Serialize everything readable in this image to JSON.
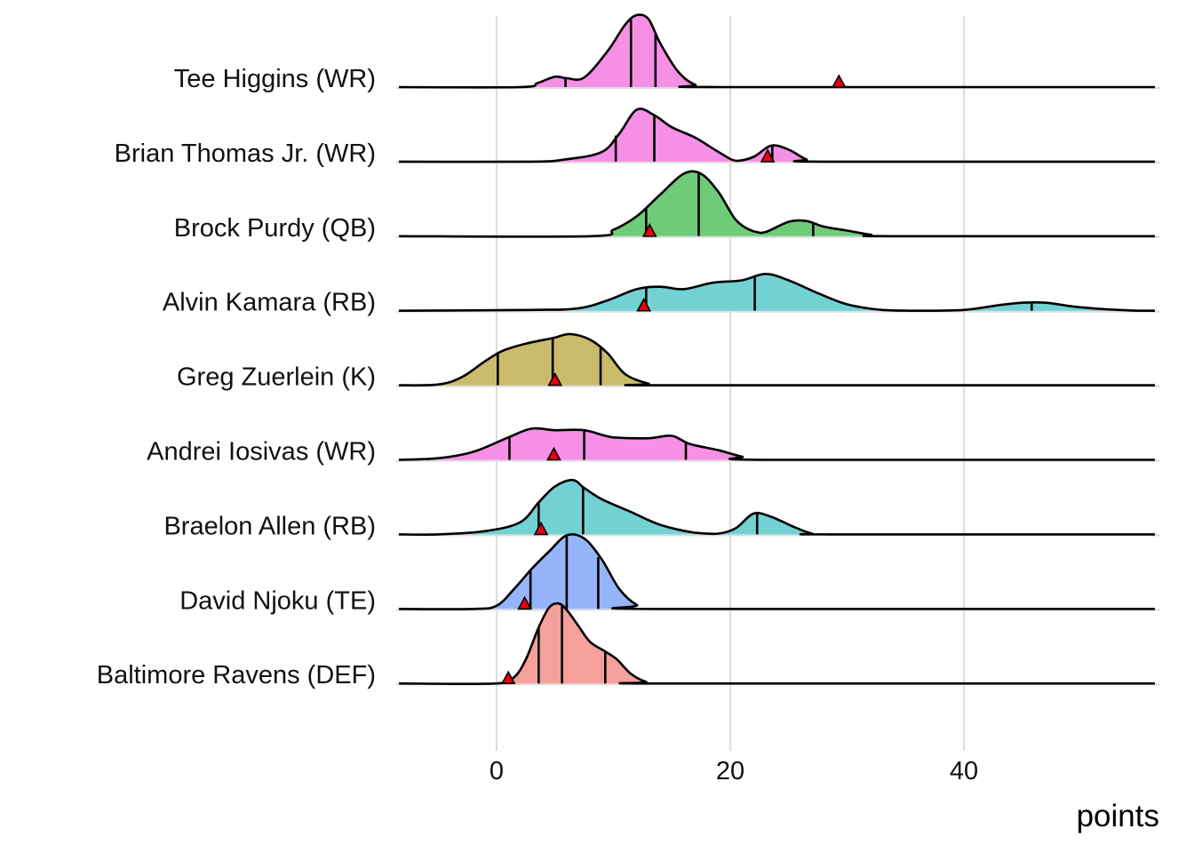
{
  "chart_data": {
    "type": "ridgeline",
    "title": "",
    "xlabel": "points",
    "ylabel": "",
    "xlim": [
      -8.4,
      56.5
    ],
    "x_ticks": [
      0,
      20,
      40
    ],
    "x_tick_labels": [
      "0",
      "20",
      "40"
    ],
    "grid": "vertical major",
    "legend": "none",
    "marker_description": "red triangle = actual points",
    "quantile_lines_description": "vertical lines = 25th, 50th, 75th percentiles",
    "series": [
      {
        "name": "Tee Higgins (WR)",
        "color": "#f68fe6",
        "quantiles": [
          5.9,
          11.5,
          13.6
        ],
        "actual": 29.3,
        "density": [
          [
            -8.4,
            0
          ],
          [
            2,
            0.0
          ],
          [
            3.5,
            0.05
          ],
          [
            5,
            0.13
          ],
          [
            6,
            0.11
          ],
          [
            7.5,
            0.12
          ],
          [
            9.5,
            0.45
          ],
          [
            11,
            0.78
          ],
          [
            12,
            0.9
          ],
          [
            13,
            0.85
          ],
          [
            14,
            0.55
          ],
          [
            15.5,
            0.2
          ],
          [
            17,
            0.03
          ],
          [
            19,
            0
          ],
          [
            56.5,
            0
          ]
        ]
      },
      {
        "name": "Brian Thomas Jr. (WR)",
        "color": "#f68fe6",
        "quantiles": [
          10.2,
          13.5,
          23.6
        ],
        "actual": 23.2,
        "density": [
          [
            -8.4,
            0
          ],
          [
            3,
            0
          ],
          [
            6,
            0.03
          ],
          [
            9,
            0.12
          ],
          [
            10.5,
            0.35
          ],
          [
            12,
            0.65
          ],
          [
            13.5,
            0.58
          ],
          [
            15,
            0.43
          ],
          [
            17,
            0.3
          ],
          [
            19,
            0.12
          ],
          [
            20.5,
            0.01
          ],
          [
            22,
            0.06
          ],
          [
            23.5,
            0.2
          ],
          [
            25,
            0.15
          ],
          [
            26.5,
            0.03
          ],
          [
            28,
            0
          ],
          [
            56.5,
            0
          ]
        ]
      },
      {
        "name": "Brock Purdy (QB)",
        "color": "#6ecc78",
        "quantiles": [
          12.8,
          17.3,
          27.1
        ],
        "actual": 13.1,
        "density": [
          [
            -8.4,
            0
          ],
          [
            8,
            0
          ],
          [
            10,
            0.08
          ],
          [
            12,
            0.25
          ],
          [
            14,
            0.52
          ],
          [
            16,
            0.78
          ],
          [
            17.5,
            0.78
          ],
          [
            19,
            0.55
          ],
          [
            20.5,
            0.2
          ],
          [
            22,
            0.06
          ],
          [
            23,
            0.05
          ],
          [
            25,
            0.18
          ],
          [
            26.5,
            0.19
          ],
          [
            28,
            0.12
          ],
          [
            30,
            0.07
          ],
          [
            32,
            0.02
          ],
          [
            33.5,
            0
          ],
          [
            56.5,
            0
          ]
        ]
      },
      {
        "name": "Alvin Kamara (RB)",
        "color": "#72d1d3",
        "quantiles": [
          12.8,
          22.1,
          45.8
        ],
        "actual": 12.6,
        "density": [
          [
            -8.4,
            0
          ],
          [
            3,
            0.01
          ],
          [
            7,
            0.03
          ],
          [
            9.5,
            0.13
          ],
          [
            12,
            0.27
          ],
          [
            14,
            0.3
          ],
          [
            16,
            0.27
          ],
          [
            18.5,
            0.35
          ],
          [
            21,
            0.38
          ],
          [
            23,
            0.46
          ],
          [
            25,
            0.38
          ],
          [
            27.5,
            0.22
          ],
          [
            30,
            0.08
          ],
          [
            33,
            0.01
          ],
          [
            36,
            0
          ],
          [
            40,
            0.01
          ],
          [
            43,
            0.07
          ],
          [
            45,
            0.1
          ],
          [
            47,
            0.1
          ],
          [
            49.5,
            0.05
          ],
          [
            52,
            0.02
          ],
          [
            55,
            0
          ],
          [
            56.5,
            0
          ]
        ]
      },
      {
        "name": "Greg Zuerlein (K)",
        "color": "#cabb6a",
        "quantiles": [
          0.1,
          4.8,
          8.9
        ],
        "actual": 5.0,
        "density": [
          [
            -8.4,
            0
          ],
          [
            -5,
            0.01
          ],
          [
            -3,
            0.1
          ],
          [
            -1,
            0.3
          ],
          [
            0.5,
            0.43
          ],
          [
            2.5,
            0.52
          ],
          [
            4.8,
            0.59
          ],
          [
            6.3,
            0.64
          ],
          [
            8,
            0.57
          ],
          [
            9.5,
            0.4
          ],
          [
            11,
            0.14
          ],
          [
            13,
            0.02
          ],
          [
            14.5,
            0
          ],
          [
            56.5,
            0
          ]
        ]
      },
      {
        "name": "Andrei Iosivas (WR)",
        "color": "#f68fe6",
        "quantiles": [
          1.1,
          7.5,
          16.2
        ],
        "actual": 4.9,
        "density": [
          [
            -8.4,
            0
          ],
          [
            -5,
            0.02
          ],
          [
            -2,
            0.1
          ],
          [
            1,
            0.28
          ],
          [
            3,
            0.39
          ],
          [
            5,
            0.37
          ],
          [
            7.5,
            0.37
          ],
          [
            10,
            0.28
          ],
          [
            13,
            0.27
          ],
          [
            15,
            0.3
          ],
          [
            16.5,
            0.2
          ],
          [
            19,
            0.12
          ],
          [
            21,
            0.04
          ],
          [
            23,
            0
          ],
          [
            56.5,
            0
          ]
        ]
      },
      {
        "name": "Braelon Allen (RB)",
        "color": "#72d1d3",
        "quantiles": [
          3.6,
          7.4,
          22.3
        ],
        "actual": 3.8,
        "density": [
          [
            -8.4,
            0
          ],
          [
            -5,
            0
          ],
          [
            -1,
            0.04
          ],
          [
            2,
            0.15
          ],
          [
            3.6,
            0.4
          ],
          [
            5,
            0.6
          ],
          [
            6.5,
            0.68
          ],
          [
            7.5,
            0.58
          ],
          [
            9,
            0.44
          ],
          [
            11.5,
            0.28
          ],
          [
            14,
            0.12
          ],
          [
            17,
            0.02
          ],
          [
            19,
            0.01
          ],
          [
            20.5,
            0.08
          ],
          [
            22,
            0.26
          ],
          [
            23.5,
            0.22
          ],
          [
            25.5,
            0.09
          ],
          [
            27,
            0.01
          ],
          [
            28.5,
            0
          ],
          [
            56.5,
            0
          ]
        ]
      },
      {
        "name": "David Njoku (TE)",
        "color": "#95b5fa",
        "quantiles": [
          2.9,
          6.0,
          8.7
        ],
        "actual": 2.4,
        "density": [
          [
            -8.4,
            0
          ],
          [
            -2,
            0
          ],
          [
            0,
            0.04
          ],
          [
            1.5,
            0.25
          ],
          [
            3,
            0.5
          ],
          [
            4.5,
            0.72
          ],
          [
            6,
            0.92
          ],
          [
            7.5,
            0.88
          ],
          [
            9,
            0.62
          ],
          [
            10.5,
            0.25
          ],
          [
            12,
            0.05
          ],
          [
            13.5,
            0
          ],
          [
            56.5,
            0
          ]
        ]
      },
      {
        "name": "Baltimore Ravens (DEF)",
        "color": "#f5a09b",
        "quantiles": [
          3.6,
          5.6,
          9.3
        ],
        "actual": 1.0,
        "density": [
          [
            -8.4,
            0
          ],
          [
            0,
            0
          ],
          [
            1.5,
            0.08
          ],
          [
            2.5,
            0.3
          ],
          [
            3.6,
            0.7
          ],
          [
            4.5,
            0.95
          ],
          [
            5.3,
            1.0
          ],
          [
            6,
            0.92
          ],
          [
            7,
            0.72
          ],
          [
            8,
            0.52
          ],
          [
            9.3,
            0.4
          ],
          [
            10.3,
            0.3
          ],
          [
            11.5,
            0.12
          ],
          [
            12.8,
            0.02
          ],
          [
            14,
            0
          ],
          [
            56.5,
            0
          ]
        ]
      }
    ]
  }
}
